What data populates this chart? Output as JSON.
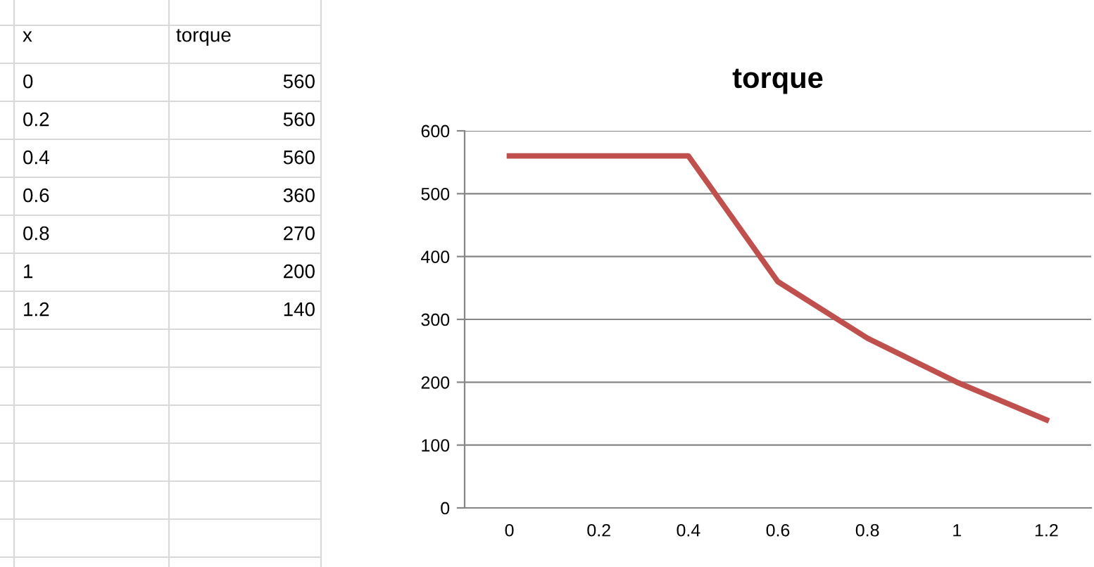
{
  "chart_data": {
    "type": "line",
    "title": "torque",
    "categories": [
      "0",
      "0.2",
      "0.4",
      "0.6",
      "0.8",
      "1",
      "1.2"
    ],
    "series": [
      {
        "color": "#c0504d",
        "values": [
          560,
          560,
          560,
          360,
          270,
          200,
          140
        ]
      }
    ],
    "ylim": [
      0,
      600
    ],
    "yticks": [
      0,
      100,
      200,
      300,
      400,
      500,
      600
    ],
    "grid": "y",
    "marker": "none",
    "line_style": "solid",
    "annotations": [
      "x",
      "torque",
      "0",
      "560",
      "0.2",
      "560",
      "0.4",
      "560",
      "0.6",
      "360",
      "0.8",
      "270",
      "1",
      "200",
      "1.2",
      "140"
    ]
  }
}
